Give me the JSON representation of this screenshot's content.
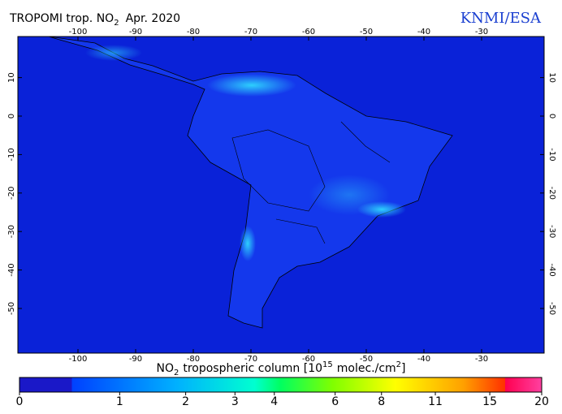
{
  "header": {
    "title": "TROPOMI trop. NO",
    "title_sub": "2",
    "title_rest": "Apr. 2020",
    "credit": "KNMI/ESA"
  },
  "map": {
    "lon_ticks": [
      -100,
      -90,
      -80,
      -70,
      -60,
      -50,
      -40,
      -30
    ],
    "lat_ticks": [
      10,
      0,
      -10,
      -20,
      -30,
      -40,
      -50
    ]
  },
  "colorbar": {
    "label_pre": "NO",
    "label_sub": "2",
    "label_mid": "tropospheric column [10",
    "label_sup": "15",
    "label_post": "molec./cm",
    "label_sup2": "2",
    "label_end": "]",
    "ticks": [
      0,
      1,
      2,
      3,
      4,
      6,
      8,
      11,
      15,
      20
    ]
  }
}
